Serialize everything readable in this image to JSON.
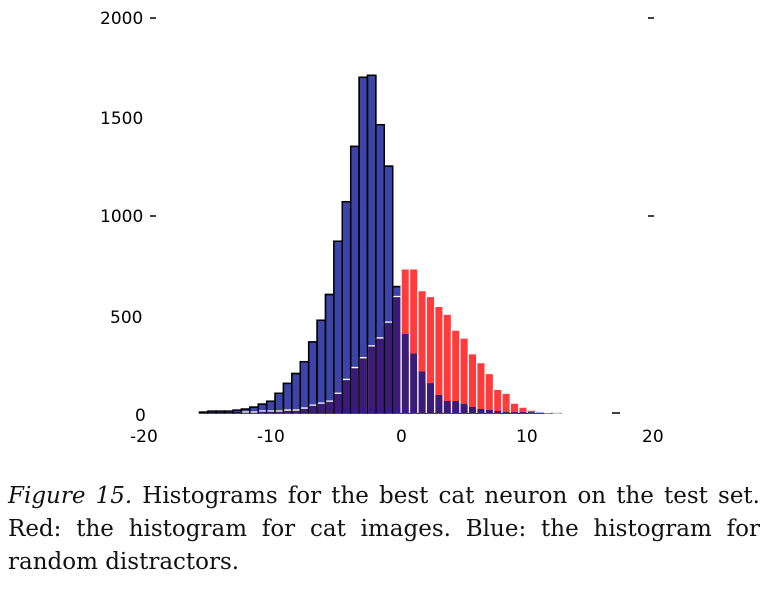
{
  "chart_data": {
    "type": "bar",
    "title": "",
    "xlabel": "",
    "ylabel": "",
    "xlim": [
      -20,
      20
    ],
    "ylim": [
      0,
      2000
    ],
    "x_ticks": [
      "-20",
      "-10",
      "0",
      "10",
      "20"
    ],
    "y_ticks": [
      "0",
      "500",
      "1000",
      "1500",
      "2000"
    ],
    "bin_start": -16,
    "bin_width": 0.667,
    "series": [
      {
        "name": "Random distractors (Blue)",
        "color": "#3c44a8",
        "edge": "#000000",
        "values": [
          5,
          10,
          10,
          10,
          15,
          20,
          30,
          45,
          60,
          100,
          150,
          200,
          260,
          360,
          470,
          600,
          870,
          1070,
          1350,
          1700,
          1710,
          1460,
          1250,
          640,
          400,
          300,
          210,
          150,
          90,
          60,
          60,
          45,
          30,
          20,
          15,
          10,
          5,
          5,
          5,
          3,
          2,
          1,
          1
        ]
      },
      {
        "name": "Cat images (Red)",
        "color": "#ff3b3b",
        "edge": "#ffffff",
        "values": [
          0,
          0,
          0,
          0,
          0,
          5,
          5,
          10,
          10,
          10,
          15,
          15,
          25,
          40,
          50,
          60,
          100,
          170,
          230,
          280,
          340,
          380,
          460,
          590,
          730,
          730,
          620,
          590,
          540,
          500,
          420,
          380,
          300,
          255,
          200,
          120,
          100,
          50,
          30,
          15,
          5,
          2,
          1
        ]
      }
    ],
    "overlap_color": "#3b1a78"
  },
  "caption": {
    "figure_label": "Figure 15.",
    "text": " Histograms for the best cat neuron on the test set.  Red: the histogram for cat images.  Blue: the histogram for random distractors."
  }
}
